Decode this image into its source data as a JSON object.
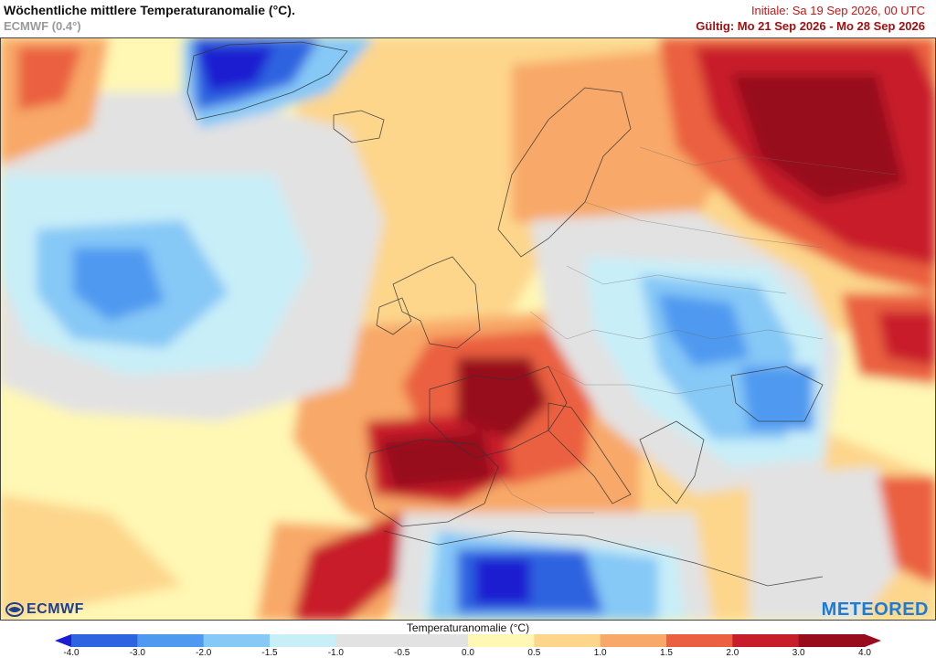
{
  "header": {
    "title": "Wöchentliche mittlere Temperaturanomalie (°C).",
    "subtitle": "ECMWF (0.4°)",
    "init_text": "Initiale: Sa 19 Sep 2026, 00 UTC",
    "valid_text": "Gültig: Mo 21 Sep 2026 - Mo 28 Sep 2026"
  },
  "logos": {
    "ecmwf": "ECMWF",
    "meteored": "METEORED"
  },
  "colorbar": {
    "title": "Temperaturanomalie (°C)",
    "ticks": [
      "-4.0",
      "-3.0",
      "-2.0",
      "-1.5",
      "-1.0",
      "-0.5",
      "0.0",
      "0.5",
      "1.0",
      "1.5",
      "2.0",
      "3.0",
      "4.0"
    ],
    "colors": [
      "#1c1cd0",
      "#2e64e0",
      "#4f9af0",
      "#86c8f6",
      "#c8eef8",
      "#e2e2e2",
      "#e2e2e2",
      "#fff7b4",
      "#fdd68c",
      "#f8a868",
      "#ea6040",
      "#c81e2c",
      "#980c1c"
    ]
  },
  "map": {
    "anomaly_colors": {
      "strong_cold": "#1c1cd0",
      "cold": "#4f9af0",
      "cool": "#86c8f6",
      "slight_cool": "#c8eef8",
      "neutral": "#e2e2e2",
      "slight_warm": "#fff7b4",
      "warm": "#fdd68c",
      "warmer": "#f8a868",
      "hot": "#ea6040",
      "very_hot": "#c81e2c",
      "extreme_hot": "#980c1c"
    }
  }
}
